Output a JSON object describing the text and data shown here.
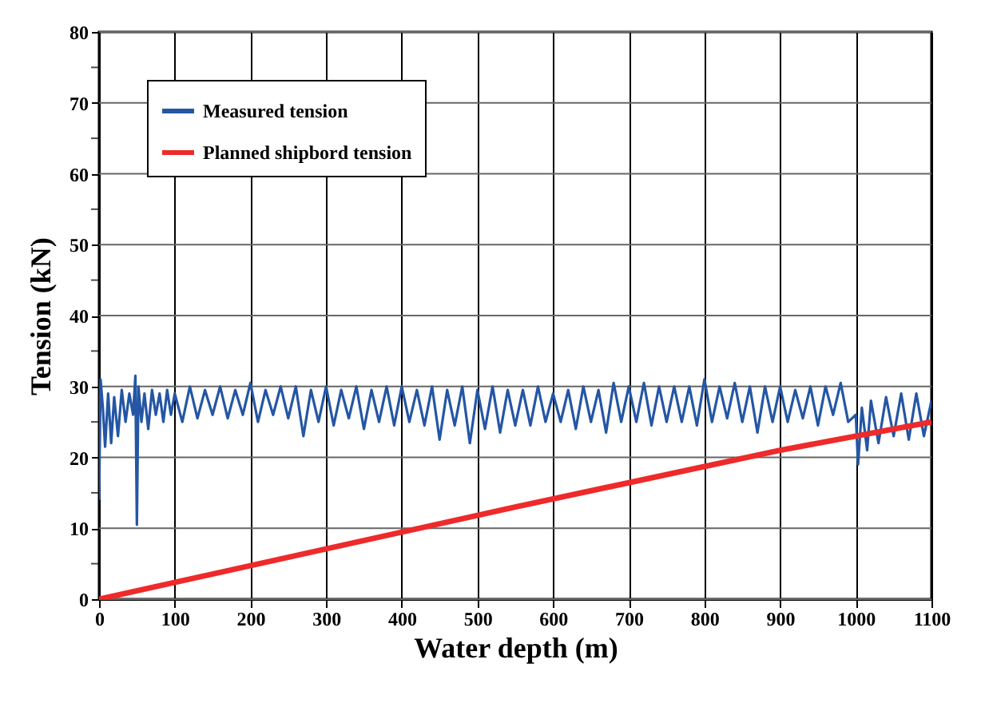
{
  "chart_data": {
    "type": "line",
    "xlabel": "Water depth (m)",
    "ylabel": "Tension (kN)",
    "xlim": [
      0,
      1100
    ],
    "xticks": [
      0,
      100,
      200,
      300,
      400,
      500,
      600,
      700,
      800,
      900,
      1000,
      1100
    ],
    "ylim": [
      0,
      80
    ],
    "yticks": [
      0,
      {
        "value": 5,
        "label": null
      },
      10,
      {
        "value": 15,
        "label": null
      },
      20,
      {
        "value": 25,
        "label": null
      },
      30,
      {
        "value": 35,
        "label": null
      },
      40,
      {
        "value": 45,
        "label": null
      },
      50,
      {
        "value": 55,
        "label": null
      },
      60,
      {
        "value": 65,
        "label": null
      },
      70,
      {
        "value": 75,
        "label": null
      },
      80
    ],
    "grid": true,
    "legend": "top left",
    "line_style": "solid",
    "marker": "none",
    "series": [
      {
        "name": "Measured tension",
        "color": "#2456a4",
        "x": [
          0,
          2,
          5,
          8,
          12,
          16,
          20,
          25,
          30,
          35,
          40,
          45,
          48,
          50,
          52,
          56,
          60,
          65,
          70,
          75,
          80,
          85,
          90,
          95,
          100,
          110,
          120,
          130,
          140,
          150,
          160,
          170,
          180,
          190,
          200,
          210,
          220,
          230,
          240,
          250,
          260,
          270,
          280,
          290,
          300,
          310,
          320,
          330,
          340,
          350,
          360,
          370,
          380,
          390,
          400,
          410,
          420,
          430,
          440,
          450,
          460,
          470,
          480,
          490,
          500,
          510,
          520,
          530,
          540,
          550,
          560,
          570,
          580,
          590,
          600,
          610,
          620,
          630,
          640,
          650,
          660,
          670,
          680,
          690,
          700,
          710,
          720,
          730,
          740,
          750,
          760,
          770,
          780,
          790,
          800,
          810,
          820,
          830,
          840,
          850,
          860,
          870,
          880,
          890,
          900,
          910,
          920,
          930,
          940,
          950,
          960,
          970,
          980,
          990,
          1000,
          1003,
          1008,
          1015,
          1020,
          1030,
          1040,
          1050,
          1060,
          1070,
          1080,
          1090,
          1100
        ],
        "values": [
          14,
          31,
          27,
          21.5,
          29,
          22,
          28.5,
          23,
          29.5,
          25,
          29,
          26,
          31.5,
          10.5,
          30,
          25,
          29,
          24,
          29.5,
          26,
          29,
          25,
          29.5,
          26,
          29,
          25,
          30,
          25.5,
          29.5,
          26,
          30,
          25.5,
          29.5,
          26,
          30.5,
          25,
          29.5,
          26,
          30,
          25.5,
          30,
          23,
          29.5,
          25,
          30,
          24.5,
          29.5,
          25.5,
          30,
          24,
          29.5,
          25,
          30,
          24.5,
          30,
          25,
          29.5,
          24.5,
          30,
          22.5,
          29.5,
          24.5,
          30,
          22,
          29.5,
          24,
          30,
          23.5,
          29.5,
          24.5,
          29.5,
          24.5,
          30,
          25,
          29,
          25,
          29.5,
          24,
          30,
          25,
          29.5,
          23.5,
          30.5,
          25,
          30,
          25,
          30.5,
          24.5,
          30,
          25,
          30,
          25,
          30,
          24.5,
          31,
          25,
          30,
          25.5,
          30.5,
          25,
          30,
          23.5,
          30,
          25,
          30,
          25,
          29.5,
          25.5,
          30,
          24.5,
          30,
          26,
          30.5,
          25,
          26,
          19,
          27,
          21,
          28,
          22,
          28.5,
          23,
          29,
          22.5,
          29,
          23,
          28
        ]
      },
      {
        "name": "Planned shipbord tension",
        "color": "#ee2a2a",
        "x": [
          0,
          550,
          900,
          1100
        ],
        "values": [
          0,
          13,
          21,
          25
        ]
      }
    ]
  }
}
